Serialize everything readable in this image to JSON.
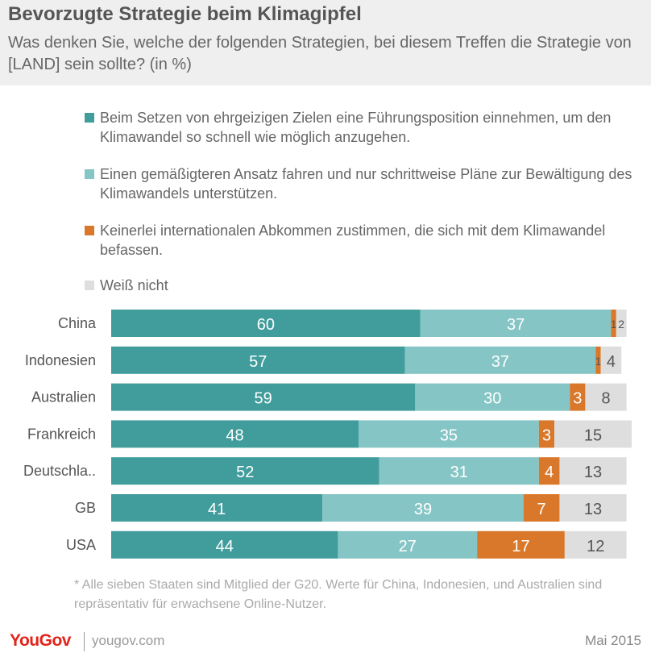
{
  "title": "Bevorzugte Strategie beim Klimagipfel",
  "subtitle": "Was denken Sie, welche der folgenden Strategien, bei diesem Treffen die Strategie von [LAND] sein sollte? (in %)",
  "colors": {
    "header_bg": "#efefef",
    "series": [
      "#419c9c",
      "#86c5c5",
      "#d9782a",
      "#dedede"
    ],
    "brand": "#e2231a"
  },
  "chart_data": {
    "type": "bar",
    "orientation": "horizontal",
    "stacked": true,
    "categories": [
      "China",
      "Indonesien",
      "Australien",
      "Frankreich",
      "Deutschla..",
      "GB",
      "USA"
    ],
    "series": [
      {
        "name": "Beim Setzen von ehrgeizigen Zielen eine Führungsposition einnehmen, um den Klimawandel so schnell wie möglich anzugehen.",
        "values": [
          60,
          57,
          59,
          48,
          52,
          41,
          44
        ]
      },
      {
        "name": "Einen gemäßigteren Ansatz fahren und nur schrittweise Pläne  zur Bewältigung des Klimawandels unterstützen.",
        "values": [
          37,
          37,
          30,
          35,
          31,
          39,
          27
        ]
      },
      {
        "name": "Keinerlei internationalen Abkommen zustimmen, die sich mit dem Klimawandel befassen.",
        "values": [
          1,
          1,
          3,
          3,
          4,
          7,
          17
        ]
      },
      {
        "name": "Weiß nicht",
        "values": [
          2,
          4,
          8,
          15,
          13,
          13,
          12
        ]
      }
    ],
    "xlim": [
      0,
      101
    ],
    "legend": "top",
    "grid": false
  },
  "footnote": "* Alle sieben Staaten sind Mitglied der G20. Werte für China, Indonesien, und Australien sind repräsentativ für erwachsene Online-Nutzer.",
  "footer": {
    "brand": "YouGov",
    "site": "yougov.com",
    "date": "Mai 2015"
  }
}
